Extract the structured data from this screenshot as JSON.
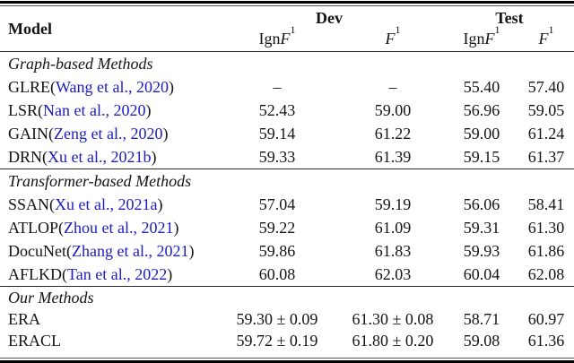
{
  "colors": {
    "citation_blue": "#1c1cc0",
    "text": "#141414",
    "background": "#ffffff"
  },
  "table": {
    "header": {
      "model_label": "Model",
      "groups": [
        {
          "label": "Dev"
        },
        {
          "label": "Test"
        }
      ],
      "subcolumns": [
        {
          "prefix": "Ign ",
          "symbol": "F",
          "subscript": "1"
        },
        {
          "prefix": "",
          "symbol": "F",
          "subscript": "1"
        },
        {
          "prefix": "Ign ",
          "symbol": "F",
          "subscript": "1"
        },
        {
          "prefix": "",
          "symbol": "F",
          "subscript": "1"
        }
      ]
    },
    "sections": [
      {
        "header": "Graph-based Methods",
        "rows": [
          {
            "name": "GLRE",
            "cite_open": "(",
            "cite": "Wang et al., 2020",
            "cite_close": ")",
            "values": [
              "–",
              "–",
              "55.40",
              "57.40"
            ]
          },
          {
            "name": "LSR",
            "cite_open": "(",
            "cite": "Nan et al., 2020",
            "cite_close": ")",
            "values": [
              "52.43",
              "59.00",
              "56.96",
              "59.05"
            ]
          },
          {
            "name": "GAIN",
            "cite_open": "(",
            "cite": "Zeng et al., 2020",
            "cite_close": ")",
            "values": [
              "59.14",
              "61.22",
              "59.00",
              "61.24"
            ]
          },
          {
            "name": "DRN",
            "cite_open": "(",
            "cite": "Xu et al., 2021b",
            "cite_close": ")",
            "values": [
              "59.33",
              "61.39",
              "59.15",
              "61.37"
            ]
          }
        ]
      },
      {
        "header": "Transformer-based Methods",
        "rows": [
          {
            "name": "SSAN",
            "cite_open": "(",
            "cite": "Xu et al., 2021a",
            "cite_close": ")",
            "values": [
              "57.04",
              "59.19",
              "56.06",
              "58.41"
            ]
          },
          {
            "name": "ATLOP",
            "cite_open": "(",
            "cite": "Zhou et al., 2021",
            "cite_close": ")",
            "values": [
              "59.22",
              "61.09",
              "59.31",
              "61.30"
            ]
          },
          {
            "name": "DocuNet",
            "cite_open": "(",
            "cite": "Zhang et al., 2021",
            "cite_close": ")",
            "values": [
              "59.86",
              "61.83",
              "59.93",
              "61.86"
            ]
          },
          {
            "name": "AFLKD",
            "cite_open": "(",
            "cite": "Tan et al., 2022",
            "cite_close": ")",
            "values": [
              "60.08",
              "62.03",
              "60.04",
              "62.08"
            ]
          }
        ]
      },
      {
        "header": "Our Methods",
        "rows": [
          {
            "name": "ERA",
            "cite_open": "",
            "cite": "",
            "cite_close": "",
            "values": [
              "59.30 ± 0.09",
              "61.30 ± 0.08",
              "58.71",
              "60.97"
            ]
          },
          {
            "name": "ERACL",
            "cite_open": "",
            "cite": "",
            "cite_close": "",
            "values": [
              "59.72 ± 0.19",
              "61.80 ± 0.20",
              "59.08",
              "61.36"
            ]
          }
        ]
      }
    ]
  }
}
